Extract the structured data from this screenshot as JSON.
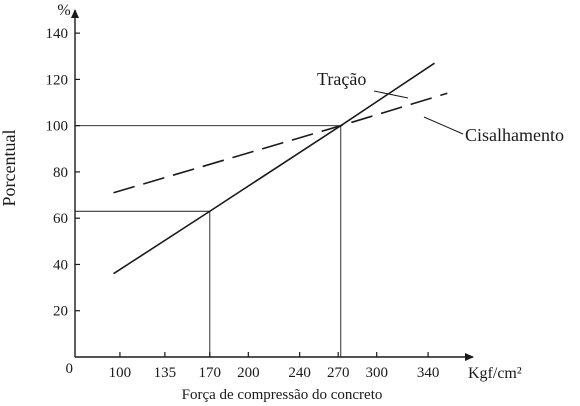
{
  "chart_data": {
    "type": "line",
    "xlabel": "Força de compressão do concreto",
    "x_unit": "Kgf/cm²",
    "ylabel": "Porcentual",
    "y_unit": "%",
    "origin_label": "0",
    "xlim": [
      65,
      375
    ],
    "ylim": [
      0,
      150
    ],
    "x_ticks": [
      100,
      135,
      170,
      200,
      240,
      270,
      300,
      340
    ],
    "y_ticks": [
      20,
      40,
      60,
      80,
      100,
      120,
      140
    ],
    "grid": false,
    "series": [
      {
        "name": "Tração",
        "style": "solid",
        "color": "#1a1a1a",
        "x": [
          95,
          170,
          272,
          345
        ],
        "y": [
          36,
          63,
          100,
          127
        ]
      },
      {
        "name": "Cisalhamento",
        "style": "dashed",
        "color": "#1a1a1a",
        "x": [
          95,
          272,
          355
        ],
        "y": [
          71,
          100,
          114
        ]
      }
    ],
    "reference_lines": [
      {
        "x": 170,
        "y": 63
      },
      {
        "x": 272,
        "y": 100
      }
    ]
  }
}
